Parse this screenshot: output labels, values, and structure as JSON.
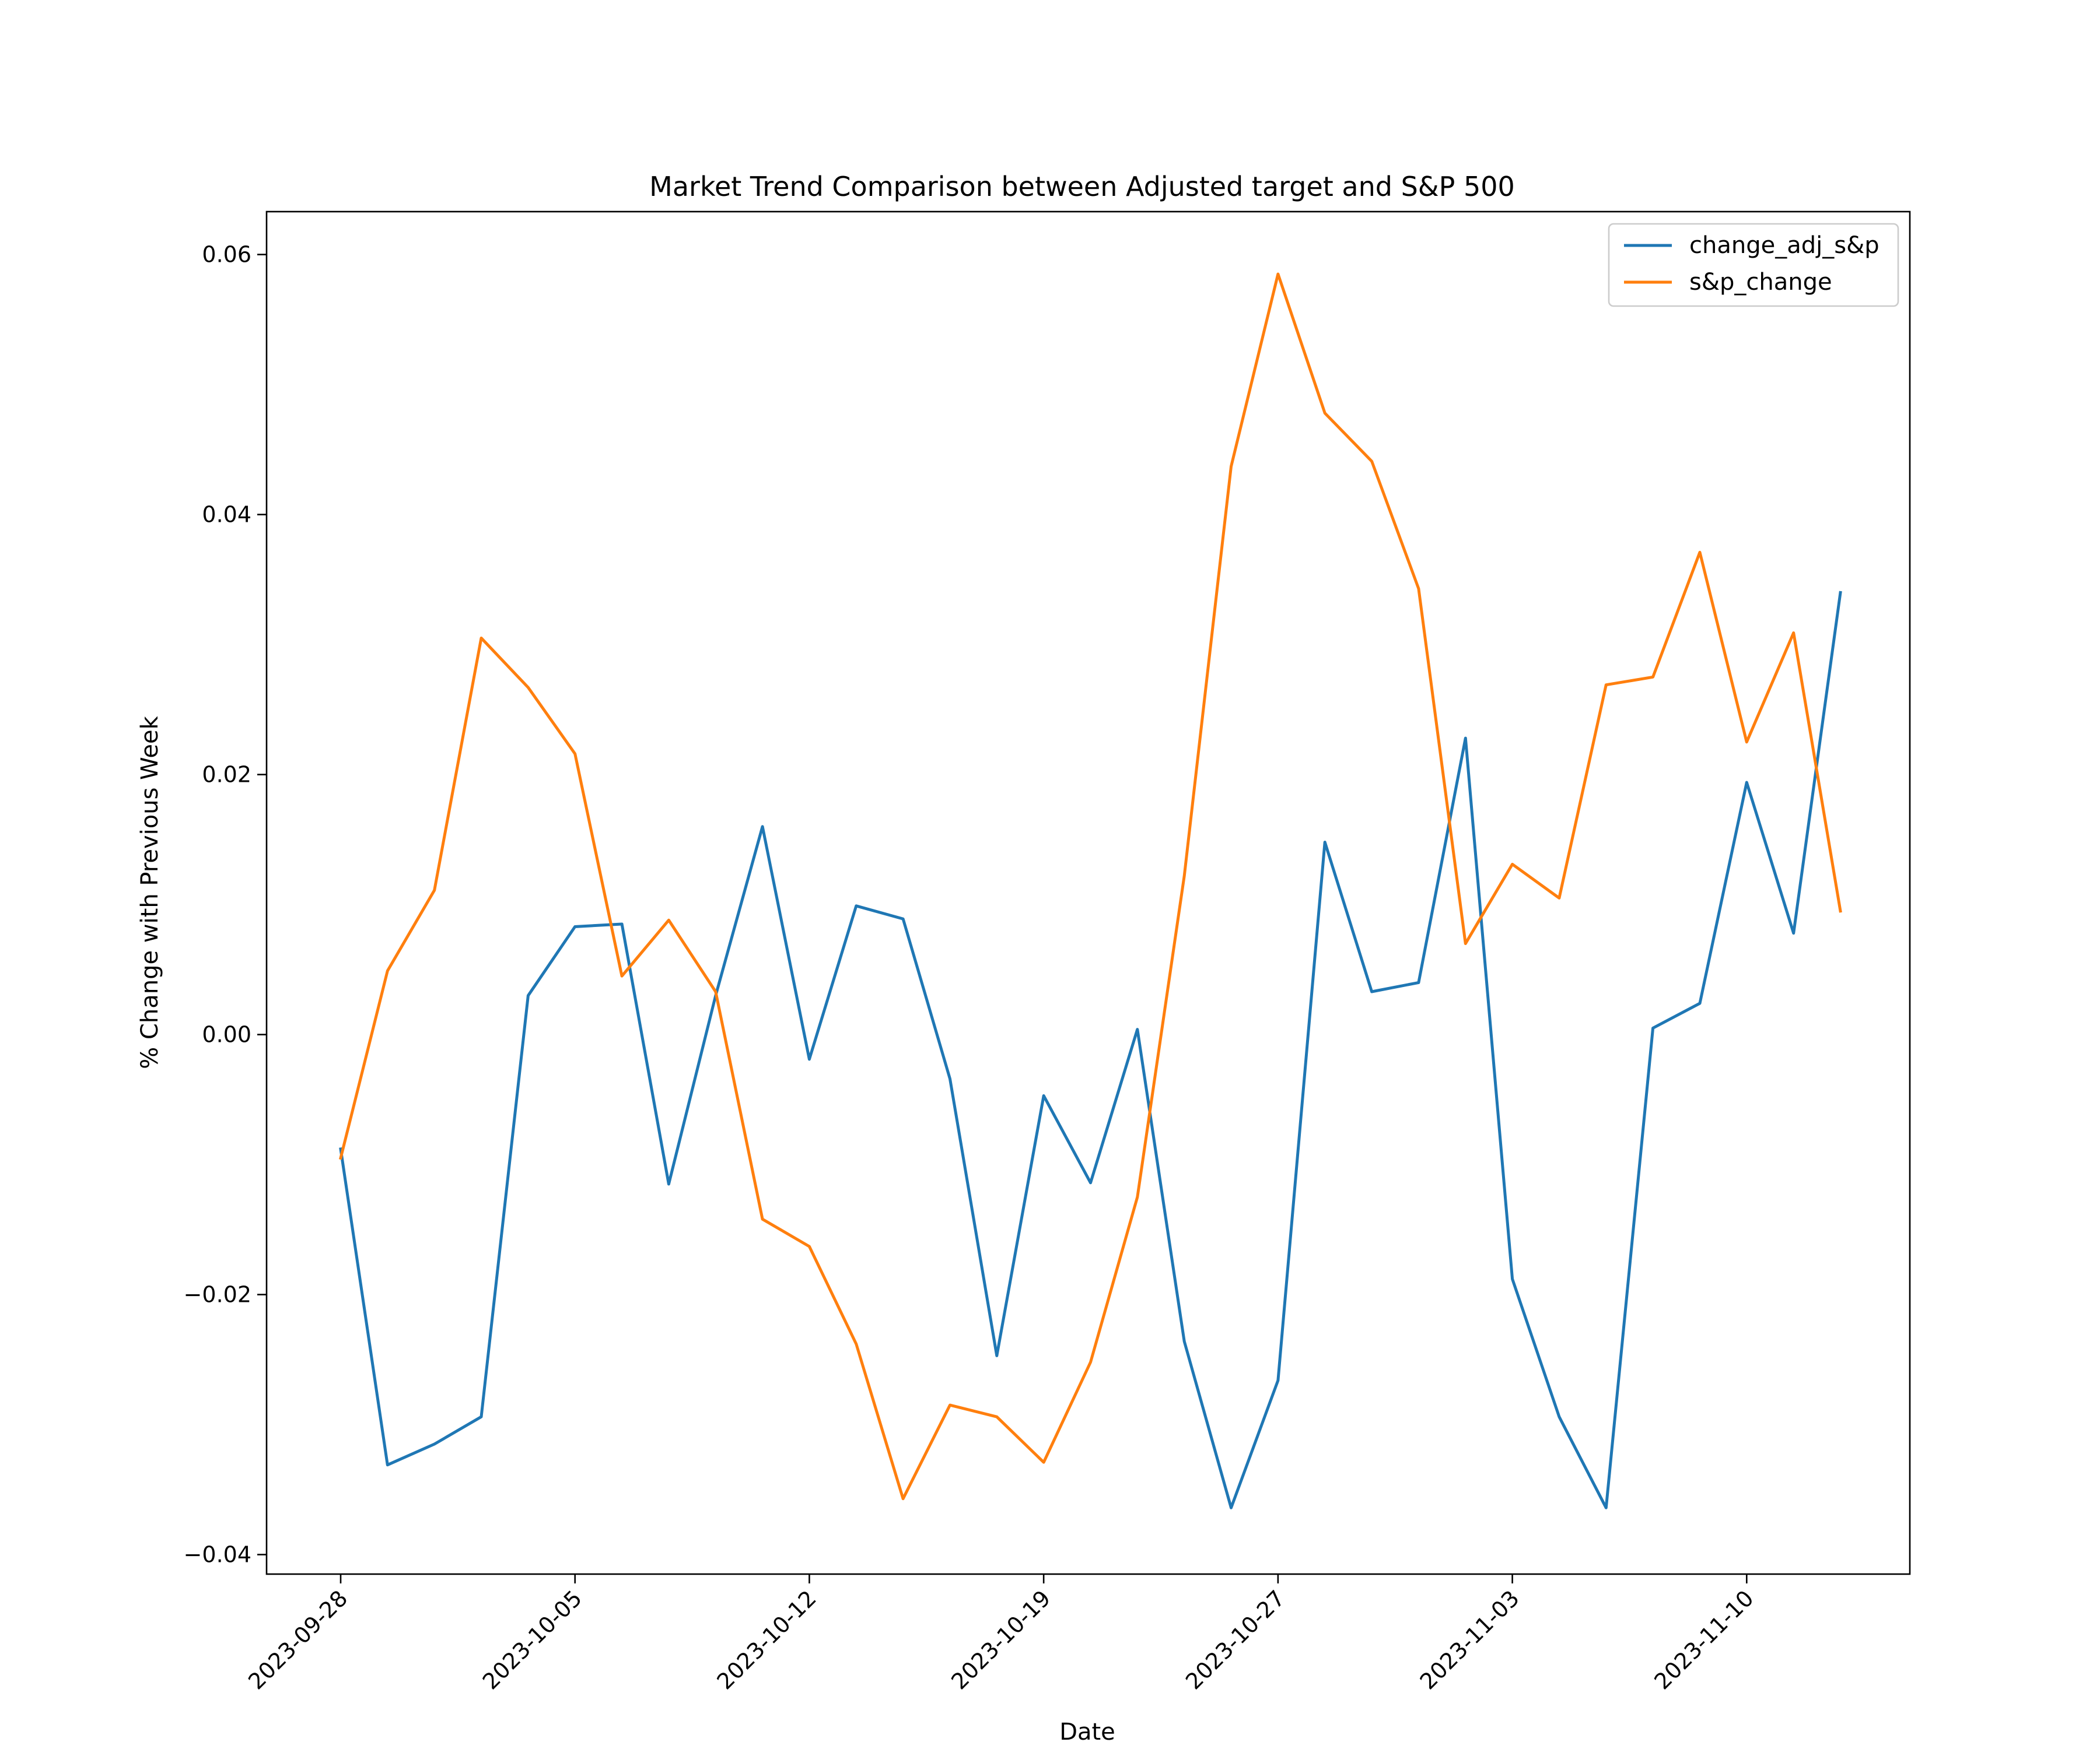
{
  "chart_data": {
    "type": "line",
    "title": "Market Trend Comparison between Adjusted target and S&P 500",
    "xlabel": "Date",
    "ylabel": "% Change with Previous Week",
    "ylim": [
      -0.0415,
      0.0633
    ],
    "yticks": [
      -0.04,
      -0.02,
      0.0,
      0.02,
      0.04,
      0.06
    ],
    "ytick_labels": [
      "−0.04",
      "−0.02",
      "0.00",
      "0.02",
      "0.04",
      "0.06"
    ],
    "xtick_labels": [
      "2023-09-28",
      "2023-10-05",
      "2023-10-12",
      "2023-10-19",
      "2023-10-27",
      "2023-11-03",
      "2023-11-10"
    ],
    "legend_position": "upper right",
    "grid": false,
    "series": [
      {
        "name": "change_adj_s&p",
        "color": "#1f77b4",
        "values": [
          -0.0088,
          -0.0331,
          -0.0315,
          -0.0294,
          0.003,
          0.0083,
          0.0085,
          -0.0115,
          0.003,
          0.016,
          -0.0019,
          0.0099,
          0.0089,
          -0.0034,
          -0.0247,
          -0.0047,
          -0.0114,
          0.0004,
          -0.0236,
          -0.0364,
          -0.0266,
          0.0148,
          0.0033,
          0.004,
          0.0228,
          -0.0188,
          -0.0294,
          -0.0364,
          0.0005,
          0.0024,
          0.0194,
          0.0078,
          0.034
        ]
      },
      {
        "name": "s&p_change",
        "color": "#ff7f0e",
        "values": [
          -0.0095,
          0.0049,
          0.0111,
          0.0305,
          0.0267,
          0.0216,
          0.0045,
          0.0088,
          0.0033,
          -0.0142,
          -0.0163,
          -0.0238,
          -0.0357,
          -0.0285,
          -0.0294,
          -0.0329,
          -0.0252,
          -0.0125,
          0.0122,
          0.0437,
          0.0585,
          0.0478,
          0.0441,
          0.0343,
          0.007,
          0.0131,
          0.0105,
          0.0269,
          0.0275,
          0.0371,
          0.0225,
          0.0309,
          0.0095
        ]
      }
    ]
  }
}
